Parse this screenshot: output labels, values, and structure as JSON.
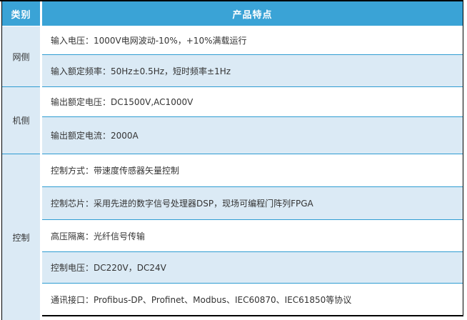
{
  "table": {
    "header": {
      "category": "类别",
      "features": "产品特点"
    },
    "groups": [
      {
        "label": "网侧",
        "rows": [
          "输入电压：1000V电网波动-10%，+10%满载运行",
          "输入额定频率：50Hz±0.5Hz，短时频率±1Hz"
        ]
      },
      {
        "label": "机侧",
        "rows": [
          "输出额定电压：DC1500V,AC1000V",
          "输出额定电流：2000A"
        ]
      },
      {
        "label": "控制",
        "rows": [
          "控制方式：带速度传感器矢量控制",
          "控制芯片：采用先进的数字信号处理器DSP，现场可编程门阵列FPGA",
          "高压隔离：光纤信号传输",
          "控制电压：DC220V，DC24V",
          "通讯接口：Profibus-DP、Profinet、Modbus、IEC60870、IEC61850等协议"
        ]
      }
    ],
    "colors": {
      "header_bg": "#3AA3D6",
      "header_text": "#FFFFFF",
      "stripe_bg": "#DBEAF5",
      "row_line": "#2F9CD2",
      "outer_border": "#000000",
      "body_text": "#333333"
    }
  }
}
